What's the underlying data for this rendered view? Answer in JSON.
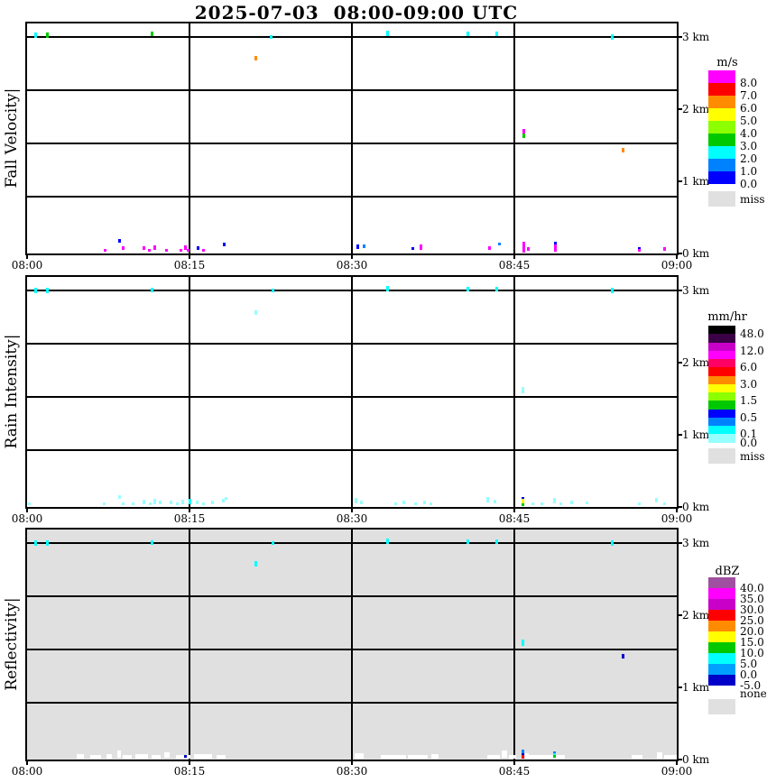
{
  "header": {
    "title": "2025-07-03  08:00-09:00 UTC"
  },
  "x_axis": {
    "labels": [
      "08:00",
      "08:15",
      "08:30",
      "08:45",
      "09:00"
    ],
    "tick_minutes": [
      0,
      15,
      30,
      45,
      60
    ]
  },
  "y_axis": {
    "labels": [
      "3 km",
      "2 km",
      "1 km",
      "0 km"
    ],
    "tick_km": [
      3,
      2,
      1,
      0
    ]
  },
  "palette": {
    "magenta": "#FF00FF",
    "red": "#FF0000",
    "orange": "#FF8C00",
    "yellow": "#FFFF00",
    "chartreuse": "#8CFF00",
    "green": "#00C800",
    "cyan": "#00FFFF",
    "dodger": "#0082FF",
    "blue": "#0000FF",
    "darkblue": "#0000C8",
    "pale": "#96FFFF",
    "white": "#FFFFFF",
    "gray": "#E0E0E0"
  },
  "panels": [
    {
      "title": "Fall Velocity|",
      "bg": "#FFFFFF",
      "colorbar": {
        "unit": "m/s",
        "blocks": [
          "#FF00FF",
          "#FF0000",
          "#FF8C00",
          "#FFFF00",
          "#8CFF00",
          "#00C800",
          "#00FFFF",
          "#0082FF",
          "#0000FF"
        ],
        "labels": [
          {
            "text": "8.0",
            "block": 0
          },
          {
            "text": "7.0",
            "block": 1
          },
          {
            "text": "6.0",
            "block": 2
          },
          {
            "text": "5.0",
            "block": 3
          },
          {
            "text": "4.0",
            "block": 4
          },
          {
            "text": "3.0",
            "block": 5
          },
          {
            "text": "2.0",
            "block": 6
          },
          {
            "text": "1.0",
            "block": 7
          },
          {
            "text": "0.0",
            "block": 8
          }
        ],
        "miss": {
          "label": "miss",
          "color": "#E0E0E0"
        }
      }
    },
    {
      "title": "Rain Intensity|",
      "bg": "#FFFFFF",
      "colorbar": {
        "unit": "mm/hr",
        "blocks": [
          "#000000",
          "#3C0046",
          "#C800C8",
          "#FF00FF",
          "#FF0064",
          "#FF0000",
          "#FF8C00",
          "#FFFF00",
          "#8CFF00",
          "#00C800",
          "#0000FF",
          "#0082FF",
          "#00FFFF",
          "#96FFFF"
        ],
        "labels": [
          {
            "text": "48.0",
            "block": 0
          },
          {
            "text": "12.0",
            "block": 2
          },
          {
            "text": "6.0",
            "block": 4
          },
          {
            "text": "3.0",
            "block": 6
          },
          {
            "text": "1.5",
            "block": 8
          },
          {
            "text": "0.5",
            "block": 10
          },
          {
            "text": "0.1",
            "block": 12
          },
          {
            "text": "0.0",
            "block": 13
          }
        ],
        "miss": {
          "label": "miss",
          "color": "#E0E0E0"
        }
      }
    },
    {
      "title": "Reflectivity|",
      "bg": "#E0E0E0",
      "colorbar": {
        "unit": "dBZ",
        "blocks": [
          "#A050A0",
          "#FF00FF",
          "#C800C8",
          "#FF0000",
          "#FF8C00",
          "#FFFF00",
          "#00C800",
          "#00FFFF",
          "#00A0FF",
          "#0000C8"
        ],
        "labels": [
          {
            "text": "40.0",
            "block": 0
          },
          {
            "text": "35.0",
            "block": 1
          },
          {
            "text": "30.0",
            "block": 2
          },
          {
            "text": "25.0",
            "block": 3
          },
          {
            "text": "20.0",
            "block": 4
          },
          {
            "text": "15.0",
            "block": 5
          },
          {
            "text": "10.0",
            "block": 6
          },
          {
            "text": "5.0",
            "block": 7
          },
          {
            "text": "0.0",
            "block": 8
          },
          {
            "text": "-5.0",
            "block": 9
          }
        ],
        "miss": {
          "label": "none",
          "color": "#E0E0E0"
        }
      }
    }
  ],
  "chart_data": [
    {
      "type": "scatter",
      "id": "fall-velocity",
      "panel": "Fall Velocity",
      "value_unit": "m/s",
      "x_range_minutes": [
        0,
        60
      ],
      "y_range_km": [
        0,
        3.19
      ],
      "grid_minutes": [
        15,
        30,
        45
      ],
      "grid_km": [
        3.0,
        2.26,
        1.53,
        0.79
      ],
      "point_format": "[minutes_after_0800, height_km, color, h_px, w_px(optional)]",
      "points": [
        [
          0.8,
          3.03,
          "cyan",
          6
        ],
        [
          1.9,
          3.03,
          "green",
          6
        ],
        [
          11.5,
          3.04,
          "green",
          5
        ],
        [
          22.5,
          3.0,
          "cyan",
          4
        ],
        [
          33.3,
          3.05,
          "cyan",
          6
        ],
        [
          40.7,
          3.05,
          "cyan",
          5
        ],
        [
          43.4,
          3.05,
          "cyan",
          5
        ],
        [
          54.0,
          3.0,
          "cyan",
          6
        ],
        [
          21.1,
          2.71,
          "orange",
          5
        ],
        [
          45.9,
          1.69,
          "magenta",
          5
        ],
        [
          45.9,
          1.63,
          "green",
          5
        ],
        [
          55.0,
          1.43,
          "orange",
          5
        ],
        [
          8.5,
          0.17,
          "blue",
          4
        ],
        [
          7.2,
          0.05,
          "magenta",
          3
        ],
        [
          8.9,
          0.07,
          "magenta",
          4
        ],
        [
          10.8,
          0.07,
          "magenta",
          4
        ],
        [
          11.3,
          0.04,
          "magenta",
          3
        ],
        [
          11.8,
          0.08,
          "magenta",
          5
        ],
        [
          12.9,
          0.05,
          "magenta",
          3
        ],
        [
          14.2,
          0.05,
          "magenta",
          3
        ],
        [
          14.6,
          0.08,
          "magenta",
          5
        ],
        [
          14.9,
          0.05,
          "magenta",
          3
        ],
        [
          15.8,
          0.08,
          "blue",
          4
        ],
        [
          16.3,
          0.05,
          "magenta",
          3
        ],
        [
          18.2,
          0.12,
          "blue",
          4
        ],
        [
          30.5,
          0.1,
          "blue",
          5
        ],
        [
          31.1,
          0.1,
          "dodger",
          4
        ],
        [
          35.6,
          0.07,
          "blue",
          3
        ],
        [
          36.4,
          0.09,
          "magenta",
          6
        ],
        [
          42.7,
          0.07,
          "magenta",
          4
        ],
        [
          43.6,
          0.13,
          "dodger",
          3
        ],
        [
          45.9,
          0.09,
          "magenta",
          12
        ],
        [
          46.3,
          0.06,
          "magenta",
          4
        ],
        [
          48.8,
          0.14,
          "blue",
          3
        ],
        [
          48.8,
          0.07,
          "magenta",
          8
        ],
        [
          56.5,
          0.07,
          "blue",
          3
        ],
        [
          56.5,
          0.04,
          "magenta",
          3
        ],
        [
          58.9,
          0.06,
          "magenta",
          4
        ]
      ]
    },
    {
      "type": "scatter",
      "id": "rain-intensity",
      "panel": "Rain Intensity",
      "value_unit": "mm/hr",
      "x_range_minutes": [
        0,
        60
      ],
      "y_range_km": [
        0,
        3.19
      ],
      "grid_minutes": [
        15,
        30,
        45
      ],
      "grid_km": [
        3.0,
        2.26,
        1.53,
        0.79
      ],
      "point_format": "[minutes_after_0800, height_km, color, h_px, w_px(optional)]",
      "points": [
        [
          0.8,
          3.0,
          "cyan",
          6
        ],
        [
          1.9,
          3.0,
          "cyan",
          6
        ],
        [
          11.5,
          3.01,
          "cyan",
          5
        ],
        [
          22.7,
          3.0,
          "cyan",
          4
        ],
        [
          33.3,
          3.02,
          "cyan",
          6
        ],
        [
          40.7,
          3.02,
          "cyan",
          5
        ],
        [
          43.4,
          3.02,
          "cyan",
          5
        ],
        [
          54.0,
          3.0,
          "cyan",
          6
        ],
        [
          21.1,
          2.7,
          "pale",
          5
        ],
        [
          45.8,
          1.62,
          "pale",
          7
        ],
        [
          0.2,
          0.04,
          "pale",
          3
        ],
        [
          7.1,
          0.05,
          "pale",
          3
        ],
        [
          8.5,
          0.14,
          "pale",
          4
        ],
        [
          8.9,
          0.05,
          "pale",
          3
        ],
        [
          9.8,
          0.05,
          "pale",
          3
        ],
        [
          10.8,
          0.07,
          "pale",
          5
        ],
        [
          11.4,
          0.05,
          "pale",
          3
        ],
        [
          11.8,
          0.08,
          "pale",
          6
        ],
        [
          12.3,
          0.06,
          "pale",
          4
        ],
        [
          13.3,
          0.06,
          "pale",
          4
        ],
        [
          13.9,
          0.05,
          "pale",
          3
        ],
        [
          14.4,
          0.07,
          "pale",
          5
        ],
        [
          15.0,
          0.08,
          "cyan",
          6
        ],
        [
          15.7,
          0.06,
          "pale",
          4
        ],
        [
          16.3,
          0.05,
          "pale",
          3
        ],
        [
          17.1,
          0.06,
          "pale",
          4
        ],
        [
          18.1,
          0.09,
          "pale",
          4
        ],
        [
          18.4,
          0.12,
          "pale",
          3
        ],
        [
          30.4,
          0.09,
          "pale",
          6
        ],
        [
          30.9,
          0.06,
          "pale",
          4
        ],
        [
          34.0,
          0.05,
          "pale",
          3
        ],
        [
          34.8,
          0.06,
          "pale",
          4
        ],
        [
          35.9,
          0.05,
          "pale",
          3
        ],
        [
          36.7,
          0.06,
          "pale",
          4
        ],
        [
          37.3,
          0.05,
          "pale",
          3
        ],
        [
          42.5,
          0.1,
          "pale",
          6
        ],
        [
          43.2,
          0.08,
          "pale",
          4
        ],
        [
          45.8,
          0.12,
          "blue",
          3
        ],
        [
          45.8,
          0.08,
          "yellow",
          5
        ],
        [
          45.8,
          0.03,
          "green",
          3
        ],
        [
          46.7,
          0.05,
          "pale",
          3
        ],
        [
          47.5,
          0.05,
          "pale",
          3
        ],
        [
          48.7,
          0.09,
          "pale",
          6
        ],
        [
          49.3,
          0.05,
          "pale",
          3
        ],
        [
          50.3,
          0.06,
          "pale",
          4
        ],
        [
          51.7,
          0.06,
          "pale",
          3
        ],
        [
          56.5,
          0.05,
          "pale",
          3
        ],
        [
          58.1,
          0.1,
          "pale",
          5
        ],
        [
          58.9,
          0.04,
          "pale",
          3
        ]
      ]
    },
    {
      "type": "scatter",
      "id": "reflectivity",
      "panel": "Reflectivity",
      "value_unit": "dBZ",
      "x_range_minutes": [
        0,
        60
      ],
      "y_range_km": [
        0,
        3.19
      ],
      "grid_minutes": [
        15,
        30,
        45
      ],
      "grid_km": [
        3.0,
        2.26,
        1.53,
        0.79
      ],
      "point_format": "[minutes_after_0800, height_km, color, h_px, w_px(optional)]",
      "points": [
        [
          0.8,
          3.0,
          "cyan",
          6
        ],
        [
          1.9,
          3.0,
          "cyan",
          6
        ],
        [
          11.5,
          3.01,
          "cyan",
          5
        ],
        [
          22.7,
          3.0,
          "cyan",
          4
        ],
        [
          33.3,
          3.02,
          "cyan",
          6
        ],
        [
          40.7,
          3.02,
          "cyan",
          5
        ],
        [
          43.4,
          3.02,
          "cyan",
          5
        ],
        [
          54.0,
          3.0,
          "cyan",
          6
        ],
        [
          21.1,
          2.71,
          "cyan",
          6
        ],
        [
          45.8,
          1.62,
          "cyan",
          7
        ],
        [
          55.0,
          1.43,
          "darkblue",
          5
        ],
        [
          4.9,
          0.05,
          "white",
          5,
          8
        ],
        [
          6.3,
          0.04,
          "white",
          4,
          12
        ],
        [
          7.6,
          0.05,
          "white",
          5,
          6
        ],
        [
          8.5,
          0.08,
          "white",
          8,
          4
        ],
        [
          9.25,
          0.04,
          "white",
          4,
          10
        ],
        [
          10.6,
          0.05,
          "white",
          5,
          14
        ],
        [
          11.9,
          0.04,
          "white",
          4,
          10
        ],
        [
          12.9,
          0.06,
          "white",
          6,
          6
        ],
        [
          14.4,
          0.04,
          "white",
          4,
          16
        ],
        [
          16.25,
          0.05,
          "white",
          5,
          20
        ],
        [
          17.9,
          0.04,
          "white",
          4,
          10
        ],
        [
          14.6,
          0.04,
          "darkblue",
          3
        ],
        [
          30.7,
          0.05,
          "white",
          6,
          10
        ],
        [
          33.8,
          0.04,
          "white",
          4,
          28
        ],
        [
          36.1,
          0.04,
          "white",
          4,
          22
        ],
        [
          37.7,
          0.05,
          "white",
          5,
          8
        ],
        [
          43.1,
          0.04,
          "white",
          4,
          14
        ],
        [
          44.1,
          0.07,
          "white",
          8,
          6
        ],
        [
          44.8,
          0.04,
          "white",
          4,
          8
        ],
        [
          46.2,
          0.05,
          "white",
          6,
          4
        ],
        [
          48.0,
          0.04,
          "white",
          4,
          40
        ],
        [
          56.3,
          0.04,
          "white",
          4,
          12
        ],
        [
          58.4,
          0.06,
          "white",
          7,
          6
        ],
        [
          59.4,
          0.04,
          "white",
          4,
          14
        ],
        [
          45.8,
          0.11,
          "dodger",
          4
        ],
        [
          45.8,
          0.075,
          "darkblue",
          3
        ],
        [
          45.8,
          0.035,
          "red",
          4
        ],
        [
          48.7,
          0.1,
          "dodger",
          3
        ],
        [
          48.7,
          0.07,
          "cyan",
          3
        ],
        [
          48.7,
          0.04,
          "green",
          3
        ]
      ]
    }
  ]
}
